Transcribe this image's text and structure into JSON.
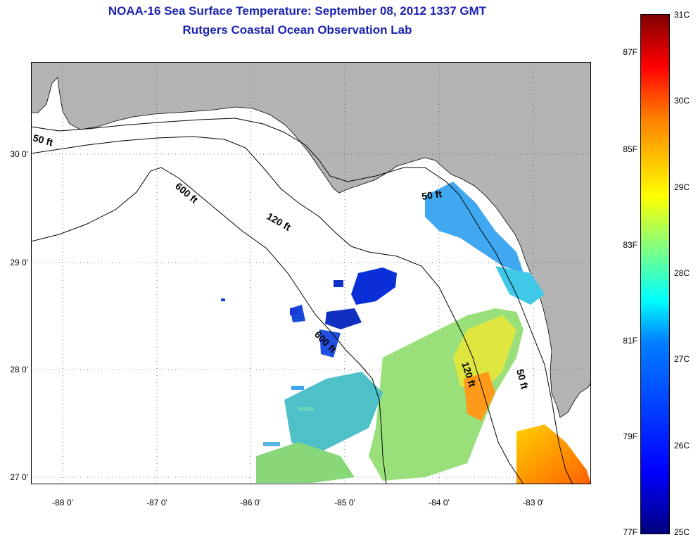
{
  "title_line1": "NOAA-16 Sea Surface Temperature:  September 08, 2012 1337 GMT",
  "title_line2": "Rutgers Coastal Ocean Observation Lab",
  "latitude_labels": [
    "30 0'",
    "29 0'",
    "28 0'",
    "27 0'"
  ],
  "longitude_labels": [
    "-88 0'",
    "-87 0'",
    "-86 0'",
    "-85 0'",
    "-84 0'",
    "-83 0'"
  ],
  "contour_labels": {
    "c50_west": "50 ft",
    "c50_east": "50 ft",
    "c50_south": "50 ft",
    "c120_north": "120 ft",
    "c120_south": "120 ft",
    "c600_north": "600 ft",
    "c600_south": "600 ft"
  },
  "colorbar": {
    "fahrenheit": [
      "87F",
      "85F",
      "83F",
      "81F",
      "79F",
      "77F"
    ],
    "celsius": [
      "31C",
      "30C",
      "29C",
      "28C",
      "27C",
      "26C",
      "25C"
    ],
    "min_c": 25,
    "max_c": 31
  },
  "colors": {
    "title": "#1a23b0",
    "land": "#b4b4b4",
    "water_nodata": "#ffffff"
  }
}
